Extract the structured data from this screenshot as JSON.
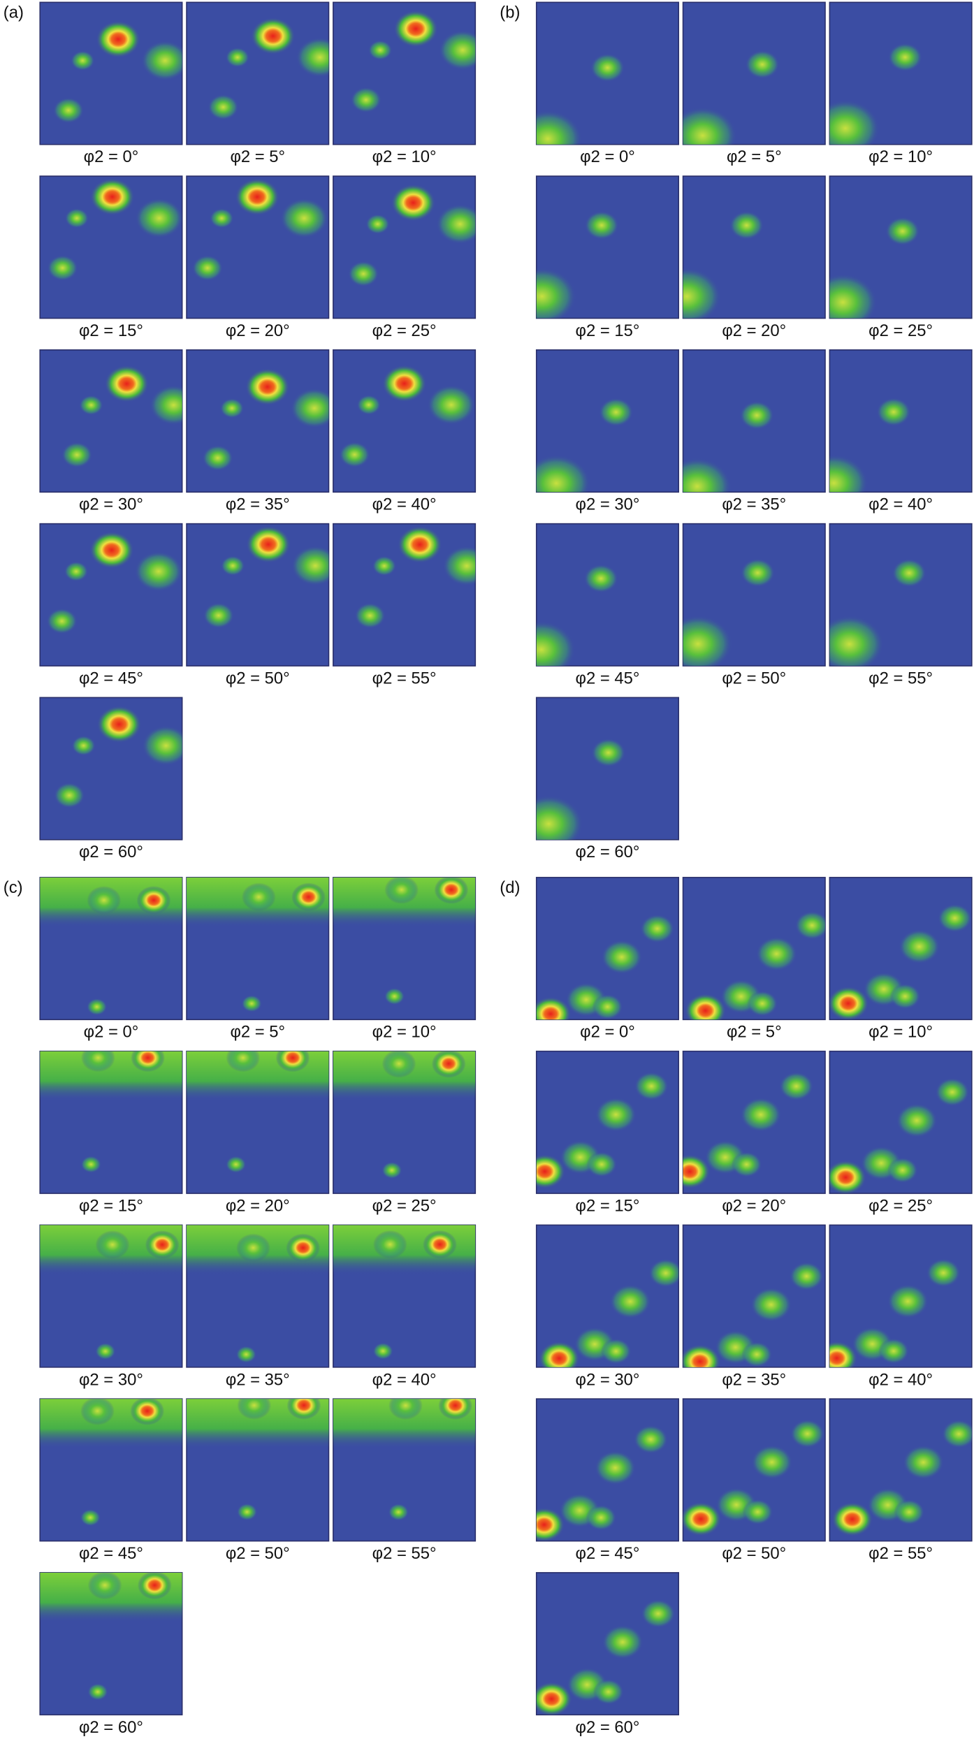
{
  "panels": [
    {
      "label": "(a)",
      "captions": [
        "φ2 = 0°",
        "φ2 = 5°",
        "φ2 = 10°",
        "φ2 = 15°",
        "φ2 = 20°",
        "φ2 = 25°",
        "φ2 = 30°",
        "φ2 = 35°",
        "φ2 = 40°",
        "φ2 = 45°",
        "φ2 = 50°",
        "φ2 = 55°",
        "φ2 = 60°"
      ]
    },
    {
      "label": "(b)",
      "captions": [
        "φ2 = 0°",
        "φ2 = 5°",
        "φ2 = 10°",
        "φ2 = 15°",
        "φ2 = 20°",
        "φ2 = 25°",
        "φ2 = 30°",
        "φ2 = 35°",
        "φ2 = 40°",
        "φ2 = 45°",
        "φ2 = 50°",
        "φ2 = 55°",
        "φ2 = 60°"
      ]
    },
    {
      "label": "(c)",
      "captions": [
        "φ2 = 0°",
        "φ2 = 5°",
        "φ2 = 10°",
        "φ2 = 15°",
        "φ2 = 20°",
        "φ2 = 25°",
        "φ2 = 30°",
        "φ2 = 35°",
        "φ2 = 40°",
        "φ2 = 45°",
        "φ2 = 50°",
        "φ2 = 55°",
        "φ2 = 60°"
      ]
    },
    {
      "label": "(d)",
      "captions": [
        "φ2 = 0°",
        "φ2 = 5°",
        "φ2 = 10°",
        "φ2 = 15°",
        "φ2 = 20°",
        "φ2 = 25°",
        "φ2 = 30°",
        "φ2 = 35°",
        "φ2 = 40°",
        "φ2 = 45°",
        "φ2 = 50°",
        "φ2 = 55°",
        "φ2 = 60°"
      ]
    }
  ]
}
